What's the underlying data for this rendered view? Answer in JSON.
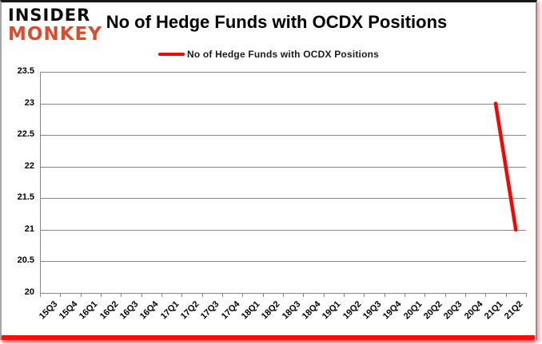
{
  "logo": {
    "line1": "INSIDER",
    "line2": "MONKEY",
    "line1_color": "#0d0d0d",
    "line2_color": "#dd4a2c"
  },
  "chart_data": {
    "type": "line",
    "title": "No of Hedge Funds with OCDX Positions",
    "legend": [
      {
        "label": "No of Hedge Funds with OCDX Positions",
        "color": "#fe0000"
      }
    ],
    "legend_position": "top",
    "categories": [
      "15Q3",
      "15Q4",
      "16Q1",
      "16Q2",
      "16Q3",
      "16Q4",
      "17Q1",
      "17Q2",
      "17Q3",
      "17Q4",
      "18Q1",
      "18Q2",
      "18Q3",
      "18Q4",
      "19Q1",
      "19Q2",
      "19Q3",
      "19Q4",
      "20Q1",
      "20Q2",
      "20Q3",
      "20Q4",
      "21Q1",
      "21Q2"
    ],
    "series": [
      {
        "name": "No of Hedge Funds with OCDX Positions",
        "color": "#fe0000",
        "values": [
          null,
          null,
          null,
          null,
          null,
          null,
          null,
          null,
          null,
          null,
          null,
          null,
          null,
          null,
          null,
          null,
          null,
          null,
          null,
          null,
          null,
          null,
          23,
          21
        ]
      }
    ],
    "xlabel": "",
    "ylabel": "",
    "ylim": [
      20,
      23.5
    ],
    "ytick_step": 0.5,
    "ytick_labels": [
      "20",
      "20.5",
      "21",
      "21.5",
      "22",
      "22.5",
      "23",
      "23.5"
    ],
    "grid": true,
    "gridline_color": "#868686",
    "axis_color": "#868686",
    "bottom_bar_color": "#fb0d0c"
  }
}
